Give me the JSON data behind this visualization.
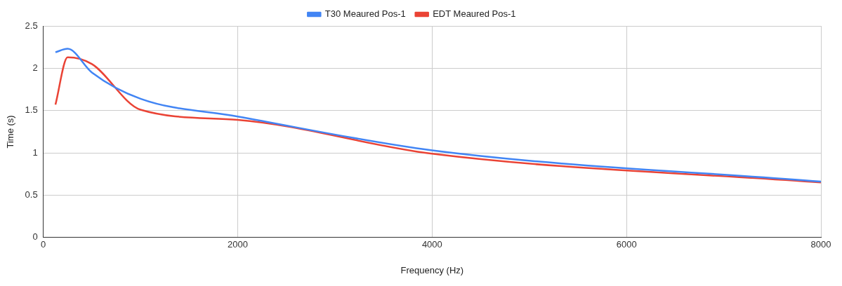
{
  "chart_data": {
    "type": "line",
    "xlabel": "Frequency (Hz)",
    "ylabel": "Time (s)",
    "x": [
      125,
      250,
      500,
      1000,
      2000,
      4000,
      8000
    ],
    "series": [
      {
        "name": "T30 Meaured Pos-1",
        "color": "#4285f4",
        "values": [
          2.19,
          2.23,
          1.95,
          1.64,
          1.43,
          1.03,
          0.66
        ]
      },
      {
        "name": "EDT Meaured Pos-1",
        "color": "#ea4335",
        "values": [
          1.57,
          2.13,
          2.05,
          1.51,
          1.39,
          0.99,
          0.65
        ]
      }
    ],
    "xlim": [
      0,
      8000
    ],
    "xticks": [
      0,
      2000,
      4000,
      6000,
      8000
    ],
    "ylim": [
      0,
      2.5
    ],
    "yticks": [
      0,
      0.5,
      1,
      1.5,
      2,
      2.5
    ],
    "grid": true,
    "legend": "top",
    "marker": "none",
    "line_style": "solid"
  }
}
